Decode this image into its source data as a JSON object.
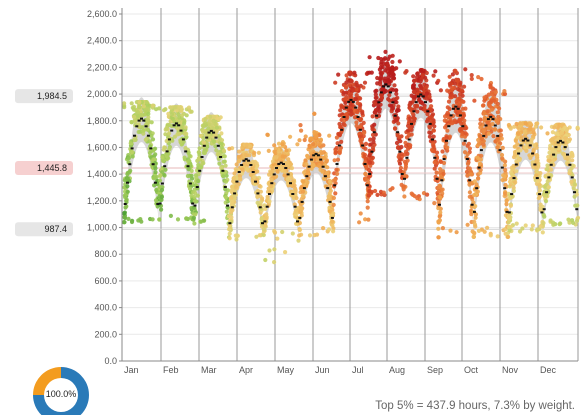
{
  "chart_data": {
    "type": "scatter",
    "title": "",
    "xlabel": "",
    "ylabel": "",
    "ylim": [
      0,
      2600
    ],
    "y_ticks": [
      "0.0",
      "200.0",
      "400.0",
      "600.0",
      "800.0",
      "1,000.0",
      "1,200.0",
      "1,400.0",
      "1,600.0",
      "1,800.0",
      "2,000.0",
      "2,200.0",
      "2,400.0",
      "2,600.0"
    ],
    "y_tick_values": [
      0,
      200,
      400,
      600,
      800,
      1000,
      1200,
      1400,
      1600,
      1800,
      2000,
      2200,
      2400,
      2600
    ],
    "x_ticks": [
      "Jan",
      "Feb",
      "Mar",
      "Apr",
      "May",
      "Jun",
      "Jul",
      "Aug",
      "Sep",
      "Oct",
      "Nov",
      "Dec"
    ],
    "grid": true,
    "reference_lines": [
      {
        "label": "1,984.5",
        "value": 1984.5,
        "color": "#e6e6e6"
      },
      {
        "label": "1,445.8",
        "value": 1445.8,
        "color": "#f7d7d7"
      },
      {
        "label": "987.4",
        "value": 987.4,
        "color": "#e6e6e6"
      }
    ],
    "weekly_profile": [
      {
        "week": 1,
        "peak": 1880,
        "low": 1080,
        "max": 1940,
        "min": 1040
      },
      {
        "week": 2,
        "peak": 1840,
        "low": 1090,
        "max": 1900,
        "min": 1060
      },
      {
        "week": 3,
        "peak": 1780,
        "low": 1080,
        "max": 1830,
        "min": 1030
      },
      {
        "week": 4,
        "peak": 1560,
        "low": 960,
        "max": 1620,
        "min": 900
      },
      {
        "week": 5,
        "peak": 1530,
        "low": 980,
        "max": 1720,
        "min": 730
      },
      {
        "week": 6,
        "peak": 1600,
        "low": 1000,
        "max": 1860,
        "min": 940
      },
      {
        "week": 7,
        "peak": 2020,
        "low": 1220,
        "max": 2160,
        "min": 960
      },
      {
        "week": 8,
        "peak": 2140,
        "low": 1300,
        "max": 2320,
        "min": 1240
      },
      {
        "week": 9,
        "peak": 2060,
        "low": 1270,
        "max": 2180,
        "min": 1160
      },
      {
        "week": 10,
        "peak": 1980,
        "low": 1060,
        "max": 2200,
        "min": 920
      },
      {
        "week": 11,
        "peak": 1900,
        "low": 1010,
        "max": 2150,
        "min": 930
      },
      {
        "week": 12,
        "peak": 1720,
        "low": 1030,
        "max": 1780,
        "min": 960
      },
      {
        "week": 13,
        "peak": 1700,
        "low": 1060,
        "max": 1770,
        "min": 1020
      }
    ],
    "color_scale": [
      "#3f9a2e",
      "#a8cf5c",
      "#ecd37a",
      "#f0a24a",
      "#e0572a",
      "#b71c1c"
    ]
  },
  "donut": {
    "label": "100.0%",
    "value_fraction": 1.0,
    "colors": [
      "#2a7ab8",
      "#f39c1f"
    ]
  },
  "footer": {
    "text": "Top 5% = 437.9 hours, 7.3% by weight."
  }
}
